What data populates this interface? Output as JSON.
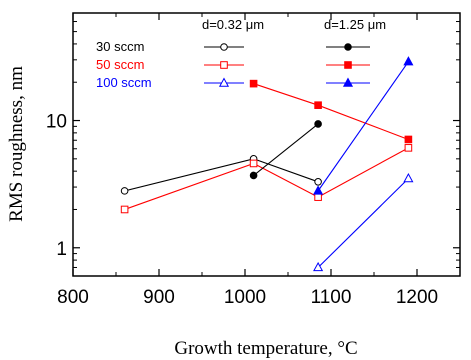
{
  "chart_data": {
    "type": "line",
    "xlabel": "Growth temperature, °C",
    "ylabel": "RMS roughness, nm",
    "xlim": [
      800,
      1250
    ],
    "ylim": [
      0.6,
      70
    ],
    "yscale": "log",
    "x_ticks": [
      800,
      900,
      1000,
      1100,
      1200
    ],
    "y_ticks": [
      1,
      10
    ],
    "y_tick_labels": [
      "1",
      "10"
    ],
    "grid": false,
    "legend": {
      "placement": "top",
      "column_headers": [
        "d=0.32 μm",
        "d=1.25 μm"
      ],
      "rows": [
        {
          "label": "30 sccm",
          "color": "#000000",
          "marker": "circle"
        },
        {
          "label": "50 sccm",
          "color": "#ff0000",
          "marker": "square"
        },
        {
          "label": "100 sccm",
          "color": "#0000ff",
          "marker": "triangle"
        }
      ]
    },
    "series": [
      {
        "flow": "30 sccm",
        "thickness": "d=0.32 μm",
        "color": "#000000",
        "marker": "circle",
        "filled": false,
        "x": [
          860,
          1010,
          1085
        ],
        "y": [
          2.8,
          5.0,
          3.3
        ]
      },
      {
        "flow": "50 sccm",
        "thickness": "d=0.32 μm",
        "color": "#ff0000",
        "marker": "square",
        "filled": false,
        "x": [
          860,
          1010,
          1085,
          1190
        ],
        "y": [
          2.0,
          4.6,
          2.5,
          6.1
        ]
      },
      {
        "flow": "100 sccm",
        "thickness": "d=0.32 μm",
        "color": "#0000ff",
        "marker": "triangle",
        "filled": false,
        "x": [
          1085,
          1190
        ],
        "y": [
          0.7,
          3.5
        ]
      },
      {
        "flow": "30 sccm",
        "thickness": "d=1.25 μm",
        "color": "#000000",
        "marker": "circle",
        "filled": true,
        "x": [
          1010,
          1085
        ],
        "y": [
          3.7,
          9.4
        ]
      },
      {
        "flow": "50 sccm",
        "thickness": "d=1.25 μm",
        "color": "#ff0000",
        "marker": "square",
        "filled": true,
        "x": [
          1010,
          1085,
          1190
        ],
        "y": [
          19.5,
          13.2,
          7.1
        ]
      },
      {
        "flow": "100 sccm",
        "thickness": "d=1.25 μm",
        "color": "#0000ff",
        "marker": "triangle",
        "filled": true,
        "x": [
          1085,
          1190
        ],
        "y": [
          2.8,
          29.0
        ]
      }
    ]
  }
}
